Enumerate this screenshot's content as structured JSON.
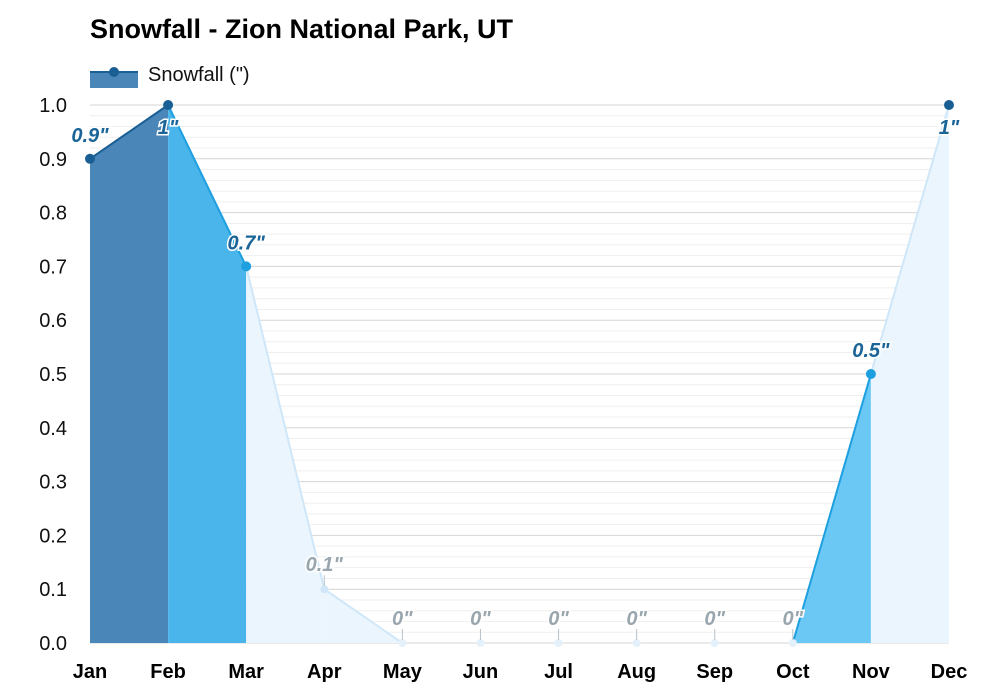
{
  "chart_data": {
    "type": "area",
    "title": "Snowfall - Zion National Park, UT",
    "categories": [
      "Jan",
      "Feb",
      "Mar",
      "Apr",
      "May",
      "Jun",
      "Jul",
      "Aug",
      "Sep",
      "Oct",
      "Nov",
      "Dec"
    ],
    "series": [
      {
        "name": "Snowfall (\")",
        "values": [
          0.9,
          1.0,
          0.7,
          0.1,
          0,
          0,
          0,
          0,
          0,
          0,
          0.5,
          1.0
        ],
        "labels": [
          "0.9\"",
          "1\"",
          "0.7\"",
          "0.1\"",
          "0\"",
          "0\"",
          "0\"",
          "0\"",
          "0\"",
          "0\"",
          "0.5\"",
          "1\""
        ]
      }
    ],
    "ylim": [
      0,
      1.0
    ],
    "yticks": [
      "0.0",
      "0.1",
      "0.2",
      "0.3",
      "0.4",
      "0.5",
      "0.6",
      "0.7",
      "0.8",
      "0.9",
      "1.0"
    ],
    "xlabel": "",
    "ylabel": "",
    "grid": true,
    "legend_position": "top-left"
  },
  "colors": {
    "dark": "#4a86b8",
    "dark_line": "#1a5f94",
    "medium": "#4ab5ea",
    "medium_line": "#1d9fe0",
    "pale": "#eaf5fd",
    "pale_line": "#cfe7f8",
    "light_blue": "#6bc8f5",
    "label_dark": "#1a6497",
    "label_grey": "#9aa6ae"
  }
}
